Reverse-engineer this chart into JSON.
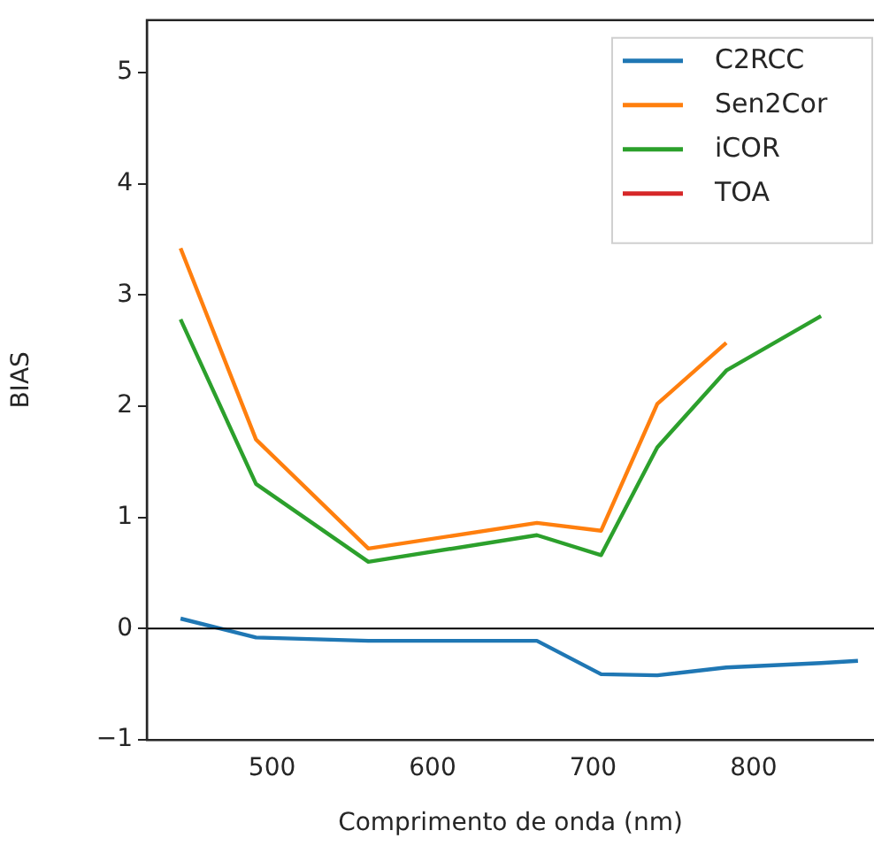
{
  "chart_data": {
    "type": "line",
    "xlabel": "Comprimento de onda (nm)",
    "ylabel": "BIAS",
    "x": [
      443,
      490,
      560,
      665,
      705,
      740,
      783,
      842,
      865
    ],
    "series": [
      {
        "name": "C2RCC",
        "color": "#1f77b4",
        "values": [
          0.09,
          -0.08,
          -0.11,
          -0.11,
          -0.41,
          -0.42,
          -0.35,
          -0.31,
          -0.29
        ]
      },
      {
        "name": "Sen2Cor",
        "color": "#ff7f0e",
        "values": [
          3.42,
          1.7,
          0.72,
          0.95,
          0.88,
          2.02,
          2.57,
          null,
          null
        ]
      },
      {
        "name": "iCOR",
        "color": "#2ca02c",
        "values": [
          2.78,
          1.3,
          0.6,
          0.84,
          0.66,
          1.63,
          2.32,
          2.81,
          null
        ]
      },
      {
        "name": "TOA",
        "color": "#d62728",
        "values": [
          null,
          null,
          null,
          null,
          null,
          null,
          null,
          null,
          null
        ]
      }
    ],
    "xlim": [
      422,
      875
    ],
    "ylim": [
      -1,
      5.47
    ],
    "xticks": [
      500,
      600,
      700,
      800
    ],
    "yticks": [
      -1,
      0,
      1,
      2,
      3,
      4,
      5
    ],
    "ref_lines": [
      {
        "axis": "y",
        "value": 0,
        "color": "#000000"
      }
    ],
    "legend": "top right",
    "grid": false,
    "line_style": "solid",
    "marker": "none"
  }
}
